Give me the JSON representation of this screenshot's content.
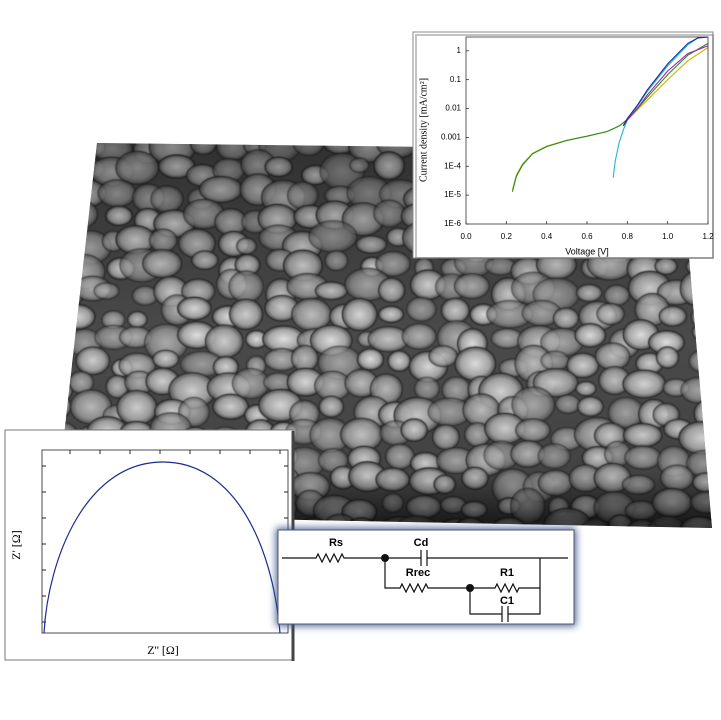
{
  "chart_data": [
    {
      "type": "line",
      "log_y": true,
      "xlabel": "Voltage [V]",
      "ylabel": "Current density [mA/cm²]",
      "xlim": [
        0,
        1.2
      ],
      "ylim": [
        1e-06,
        3
      ],
      "xticks": [
        {
          "value": 0,
          "label": "0.0"
        },
        0.2,
        0.4,
        0.6,
        0.8,
        {
          "value": 1,
          "label": "1.0"
        },
        1.2
      ],
      "yticks": [
        {
          "value": 1e-06,
          "label": "1E-6"
        },
        {
          "value": 1e-05,
          "label": "1E-5"
        },
        {
          "value": 0.0001,
          "label": "1E-4"
        },
        0.001,
        0.01,
        0.1,
        1
      ],
      "series": [
        {
          "color": "#c8b400",
          "x": [
            0.23,
            0.25,
            0.28,
            0.33,
            0.4,
            0.5,
            0.6,
            0.7,
            0.76,
            0.8,
            0.85,
            0.9,
            1.0,
            1.1,
            1.2
          ],
          "values": [
            1.5e-05,
            5e-05,
            0.00012,
            0.00028,
            0.0005,
            0.0008,
            0.0011,
            0.0016,
            0.0025,
            0.004,
            0.009,
            0.02,
            0.1,
            0.45,
            1.3
          ]
        },
        {
          "color": "#2a8a2a",
          "x": [
            0.23,
            0.25,
            0.28,
            0.33,
            0.4,
            0.5,
            0.6,
            0.7,
            0.76,
            0.8,
            0.85,
            0.9,
            1.0,
            1.1,
            1.2
          ],
          "values": [
            1.3e-05,
            4.5e-05,
            0.00011,
            0.00027,
            0.00048,
            0.00078,
            0.0011,
            0.0016,
            0.0025,
            0.0042,
            0.01,
            0.025,
            0.15,
            0.7,
            1.8
          ]
        },
        {
          "color": "#27b5c9",
          "x": [
            0.73,
            0.74,
            0.76,
            0.78,
            0.8,
            0.85,
            0.9,
            1.0,
            1.1,
            1.15,
            1.2
          ],
          "values": [
            4e-05,
            0.00015,
            0.0007,
            0.0018,
            0.004,
            0.012,
            0.04,
            0.3,
            1.6,
            2.8,
            3
          ]
        },
        {
          "color": "#a0209f",
          "x": [
            0.78,
            0.8,
            0.85,
            0.9,
            1.0,
            1.1,
            1.2
          ],
          "values": [
            0.0025,
            0.004,
            0.01,
            0.03,
            0.2,
            0.8,
            1.5
          ]
        },
        {
          "color": "#1a2a9a",
          "x": [
            0.78,
            0.8,
            0.85,
            0.9,
            1.0,
            1.1,
            1.15,
            1.2
          ],
          "values": [
            0.0025,
            0.0045,
            0.013,
            0.045,
            0.35,
            1.8,
            2.8,
            3
          ]
        }
      ]
    }
  ],
  "nyquist": {
    "xlabel": "Z'' [Ω]",
    "ylabel": "Z' [Ω]"
  },
  "circuit": {
    "labels": [
      "Rs",
      "Cd",
      "Rrec",
      "R1",
      "C1"
    ]
  }
}
